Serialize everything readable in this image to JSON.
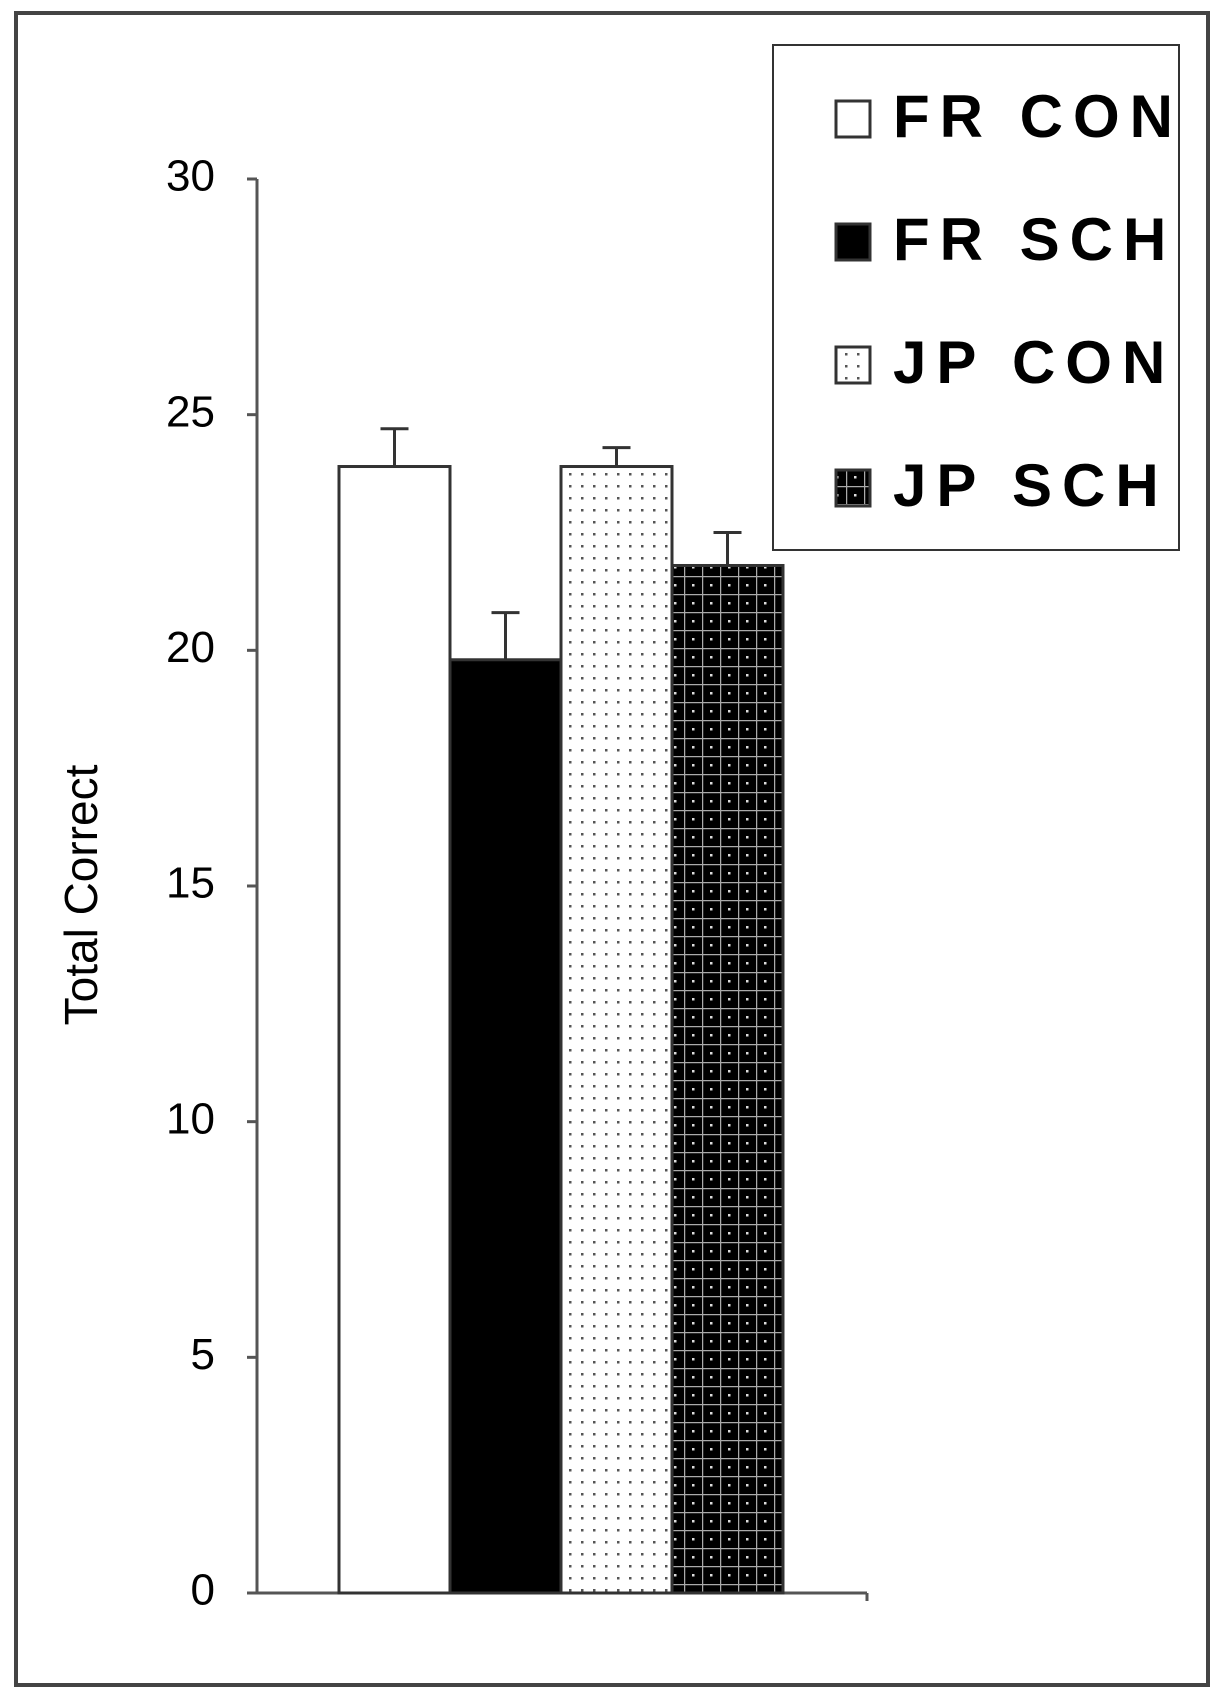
{
  "chart_data": {
    "type": "bar",
    "categories": [
      null
    ],
    "y_label": "Total Correct",
    "series": [
      {
        "name": "FR CON",
        "color": "#ffffff",
        "pattern": "solid",
        "values": [
          23.9
        ],
        "errors": [
          0.8
        ]
      },
      {
        "name": "FR SCH",
        "color": "#000000",
        "pattern": "solid",
        "values": [
          19.8
        ],
        "errors": [
          1.0
        ]
      },
      {
        "name": "JP CON",
        "color": "#ffffff",
        "pattern": "dots",
        "values": [
          23.9
        ],
        "errors": [
          0.4
        ]
      },
      {
        "name": "JP SCH",
        "color": "#000000",
        "pattern": "grid",
        "values": [
          21.8
        ],
        "errors": [
          0.7
        ]
      }
    ],
    "ylim": [
      0,
      30
    ],
    "yticks": [
      0,
      5,
      10,
      15,
      20,
      25,
      30
    ],
    "grid": false,
    "legend": "upper right"
  }
}
